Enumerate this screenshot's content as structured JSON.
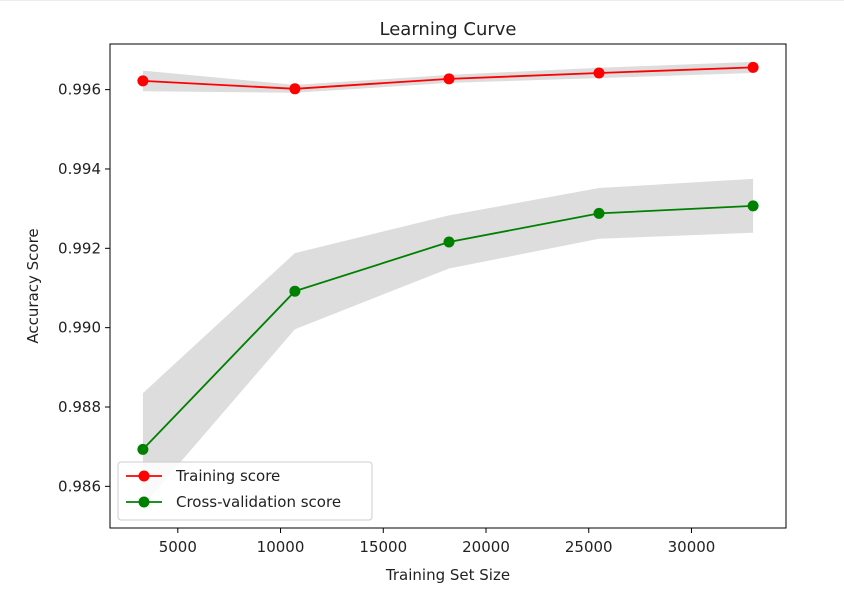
{
  "chart_data": {
    "type": "line",
    "title": "Learning Curve",
    "xlabel": "Training Set Size",
    "ylabel": "Accuracy Score",
    "xlim": [
      1700,
      34600
    ],
    "ylim": [
      0.98495,
      0.99715
    ],
    "xticks": [
      5000,
      10000,
      15000,
      20000,
      25000,
      30000
    ],
    "xtick_labels": [
      "5000",
      "10000",
      "15000",
      "20000",
      "25000",
      "30000"
    ],
    "yticks": [
      0.986,
      0.988,
      0.99,
      0.992,
      0.994,
      0.996
    ],
    "ytick_labels": [
      "0.986",
      "0.988",
      "0.990",
      "0.992",
      "0.994",
      "0.996"
    ],
    "grid": false,
    "legend_position": "lower-left",
    "x": [
      3300,
      10700,
      18200,
      25500,
      33000
    ],
    "series": [
      {
        "name": "Training score",
        "color": "#ff0000",
        "marker": "circle",
        "values": [
          0.99622,
          0.99602,
          0.99627,
          0.99642,
          0.99656
        ],
        "band_upper": [
          0.99648,
          0.99612,
          0.99637,
          0.99655,
          0.9967
        ],
        "band_lower": [
          0.99596,
          0.99592,
          0.99617,
          0.99629,
          0.99642
        ]
      },
      {
        "name": "Cross-validation score",
        "color": "#008000",
        "marker": "circle",
        "values": [
          0.98693,
          0.99092,
          0.99216,
          0.99288,
          0.99307
        ],
        "band_upper": [
          0.98835,
          0.99188,
          0.99283,
          0.99352,
          0.99375
        ],
        "band_lower": [
          0.98551,
          0.98996,
          0.99149,
          0.99224,
          0.99239
        ]
      }
    ],
    "band_color": "#dddddd"
  }
}
